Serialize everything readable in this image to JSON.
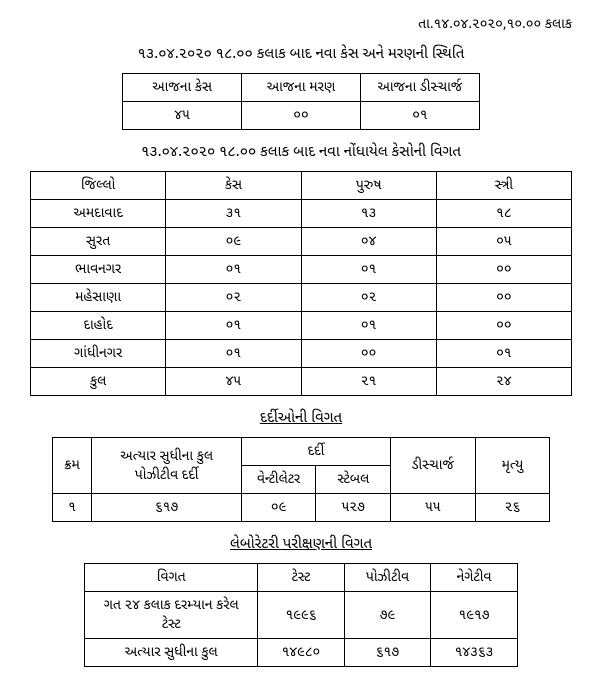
{
  "header_date": "તા.૧૪.૦૪.૨૦૨૦,૧૦.૦૦ કલાક",
  "section1": {
    "title": "૧૩.૦૪.૨૦૨૦ ૧૮.૦૦ કલાક બાદ નવા કેસ અને મરણની સ્થિતિ",
    "headers": {
      "cases": "આજના કેસ",
      "death": "આજના મરણ",
      "discharge": "આજના ડીસ્ચાર્જ"
    },
    "values": {
      "cases": "૪૫",
      "death": "૦૦",
      "discharge": "૦૧"
    }
  },
  "section2": {
    "title": "૧૩.૦૪.૨૦૨૦ ૧૮.૦૦ કલાક બાદ નવા નોંધાયેલ કેસોની વિગત",
    "headers": {
      "district": "જિલ્લો",
      "cases": "કેસ",
      "male": "પુરુષ",
      "female": "સ્ત્રી"
    },
    "rows": [
      {
        "district": "અમદાવાદ",
        "cases": "૩૧",
        "male": "૧૩",
        "female": "૧૮"
      },
      {
        "district": "સુરત",
        "cases": "૦૯",
        "male": "૦૪",
        "female": "૦૫"
      },
      {
        "district": "ભાવનગર",
        "cases": "૦૧",
        "male": "૦૧",
        "female": "૦૦"
      },
      {
        "district": "મહેસાણા",
        "cases": "૦૨",
        "male": "૦૨",
        "female": "૦૦"
      },
      {
        "district": "દાહોદ",
        "cases": "૦૧",
        "male": "૦૧",
        "female": "૦૦"
      },
      {
        "district": "ગાંધીનગર",
        "cases": "૦૧",
        "male": "૦૦",
        "female": "૦૧"
      },
      {
        "district": "કુલ",
        "cases": "૪૫",
        "male": "૨૧",
        "female": "૨૪"
      }
    ]
  },
  "section3": {
    "title": "દર્દીઓની વિગત",
    "headers": {
      "km": "ક્રમ",
      "total_positive": "અત્યાર સુધીના કુલ પોઝીટીવ દર્દી",
      "patient": "દર્દી",
      "ventilator": "વેન્ટીલેટર",
      "stable": "સ્ટેબલ",
      "discharge": "ડીસ્ચાર્જ",
      "death": "મૃત્યુ"
    },
    "row": {
      "km": "૧",
      "total_positive": "૬૧૭",
      "ventilator": "૦૯",
      "stable": "૫૨૭",
      "discharge": "૫૫",
      "death": "૨૬"
    }
  },
  "section4": {
    "title": "લેબોરેટરી પરીક્ષણની વિગત",
    "headers": {
      "detail": "વિગત",
      "test": "ટેસ્ટ",
      "positive": "પોઝીટીવ",
      "negative": "નેગેટીવ"
    },
    "rows": [
      {
        "detail": "ગત ૨૪ કલાક દરમ્યાન કરેલ ટેસ્ટ",
        "test": "૧૯૯૬",
        "positive": "૭૯",
        "negative": "૧૯૧૭"
      },
      {
        "detail": "અત્યાર સુધીના કુલ",
        "test": "૧૪૯૮૦",
        "positive": "૬૧૭",
        "negative": "૧૪૩૬૩"
      }
    ]
  }
}
